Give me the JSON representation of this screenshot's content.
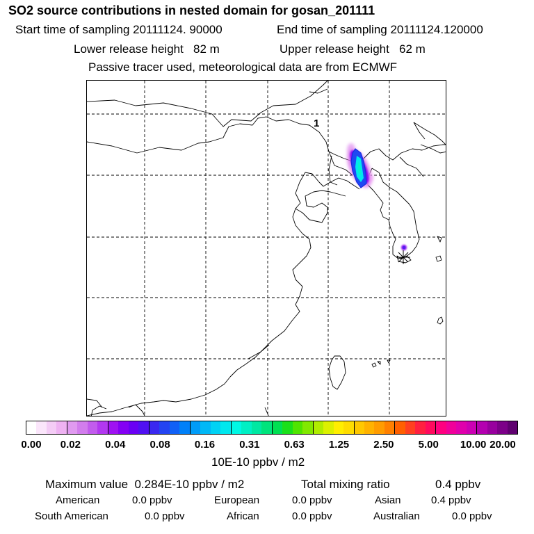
{
  "header": {
    "title": "SO2 source contributions in nested domain for gosan_201111",
    "start": "Start time of sampling 20111124. 90000",
    "end": "End time of sampling 20111124.120000",
    "lower": "Lower release height   82 m",
    "upper": "Upper release height   62 m",
    "note": "Passive tracer used, meteorological data are from ECMWF"
  },
  "map": {
    "marker_label": "1"
  },
  "colorbar": {
    "ticks": [
      "0.00",
      "0.02",
      "0.04",
      "0.08",
      "0.16",
      "0.31",
      "0.63",
      "1.25",
      "2.50",
      "5.00",
      "10.00",
      "20.00"
    ],
    "colors": [
      "#ffffff",
      "#fbe6fb",
      "#f4ccf6",
      "#eeb2f2",
      "#e09af0",
      "#d27ded",
      "#c25ced",
      "#b238f0",
      "#9f12f2",
      "#8400f4",
      "#6a00f4",
      "#5010f2",
      "#3a28f0",
      "#2444f2",
      "#1060f6",
      "#0080f8",
      "#009cf8",
      "#00b8f6",
      "#00d2f4",
      "#00e8ee",
      "#00f8e4",
      "#00f0c4",
      "#00e8a2",
      "#00e47c",
      "#00e052",
      "#1ae01a",
      "#50e400",
      "#82e800",
      "#b0ec00",
      "#dcf000",
      "#ffee00",
      "#ffdc00",
      "#ffc800",
      "#ffb200",
      "#ff9c00",
      "#ff8000",
      "#ff6000",
      "#ff4020",
      "#ff2040",
      "#ff0a5e",
      "#ff0080",
      "#f0009a",
      "#e000ac",
      "#cc00b4",
      "#b400b0",
      "#98009e",
      "#7c0088",
      "#600070"
    ],
    "units": "10E-10 ppbv / m2"
  },
  "summary": {
    "max_value": "Maximum value  0.284E-10 ppbv / m2",
    "total_label": "Total mixing ratio",
    "total_value": "0.4 ppbv",
    "regions": [
      {
        "name": "American",
        "value": "0.0 ppbv"
      },
      {
        "name": "European",
        "value": "0.0 ppbv"
      },
      {
        "name": "Asian",
        "value": "0.4 ppbv"
      },
      {
        "name": "South American",
        "value": "0.0 ppbv"
      },
      {
        "name": "African",
        "value": "0.0 ppbv"
      },
      {
        "name": "Australian",
        "value": "0.0 ppbv"
      }
    ]
  }
}
